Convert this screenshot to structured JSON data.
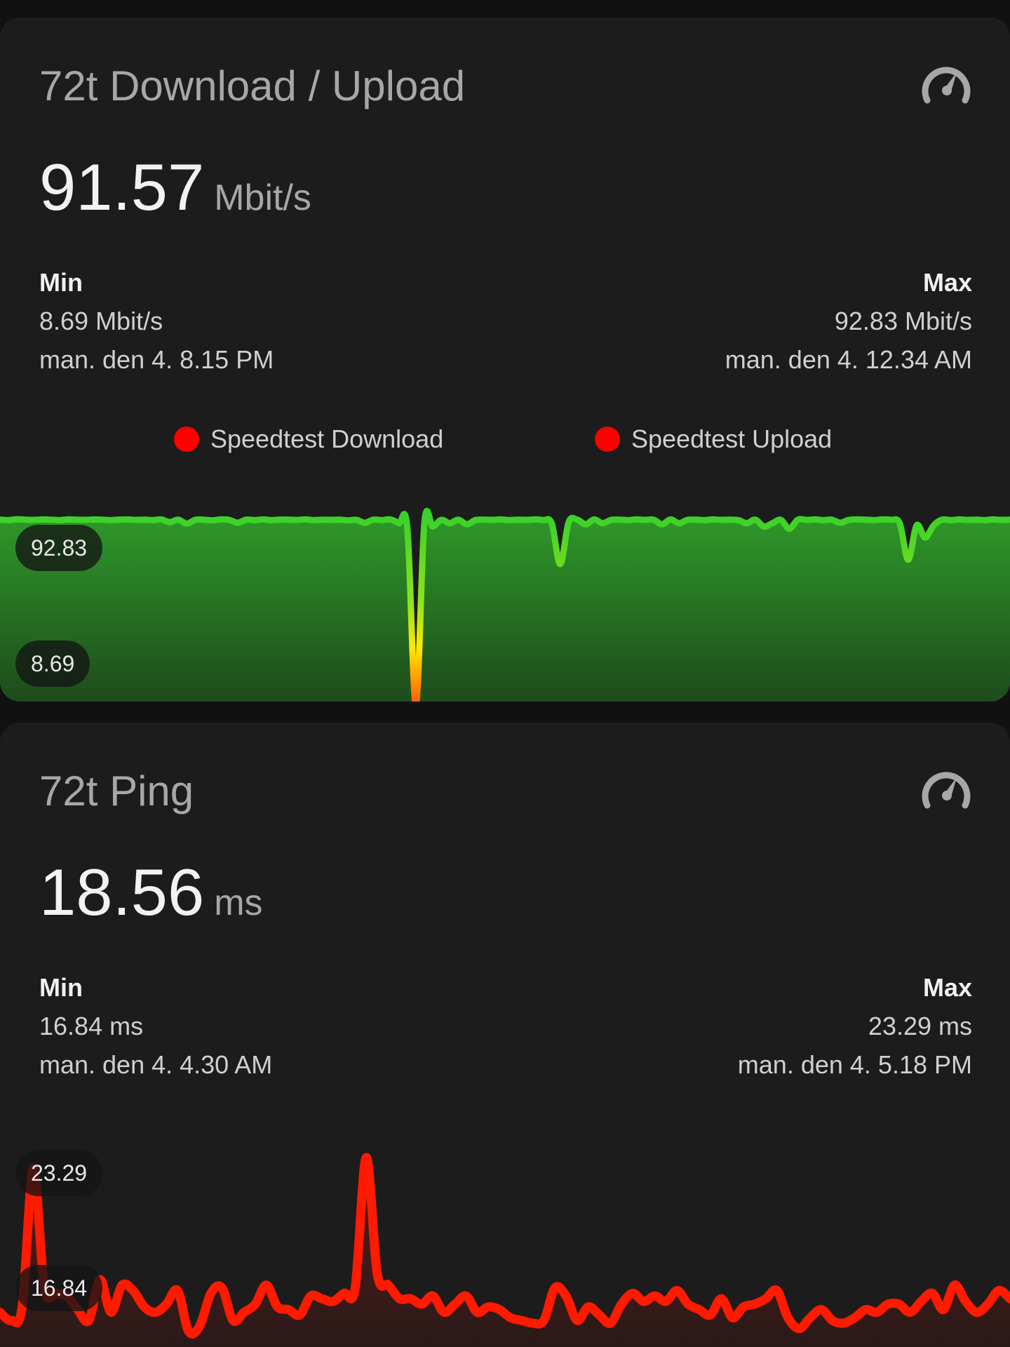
{
  "colors": {
    "card_bg": "#1c1c1c",
    "page_bg": "#111111",
    "download_line": "#39d12a",
    "ping_line": "#ff1a00",
    "legend_dot": "#ff0000"
  },
  "download_card": {
    "title": "72t Download / Upload",
    "icon": "speedometer-icon",
    "value": "91.57",
    "unit": "Mbit/s",
    "min": {
      "label": "Min",
      "value": "8.69 Mbit/s",
      "time": "man. den 4. 8.15 PM"
    },
    "max": {
      "label": "Max",
      "value": "92.83 Mbit/s",
      "time": "man. den 4. 12.34 AM"
    },
    "legend": [
      {
        "name": "Speedtest Download"
      },
      {
        "name": "Speedtest Upload"
      }
    ],
    "axis_max_label": "92.83",
    "axis_min_label": "8.69"
  },
  "ping_card": {
    "title": "72t Ping",
    "icon": "speedometer-icon",
    "value": "18.56",
    "unit": "ms",
    "min": {
      "label": "Min",
      "value": "16.84 ms",
      "time": "man. den 4. 4.30 AM"
    },
    "max": {
      "label": "Max",
      "value": "23.29 ms",
      "time": "man. den 4. 5.18 PM"
    },
    "axis_max_label": "23.29",
    "axis_min_label": "16.84"
  },
  "chart_data": [
    {
      "type": "area",
      "ylim": [
        8.69,
        92.83
      ],
      "series": [
        {
          "name": "Speedtest Download",
          "values": [
            92.6,
            92.4,
            92.8,
            92.6,
            92.5,
            92.7,
            92.6,
            92.4,
            92.7,
            92.6,
            92.5,
            92.7,
            92.6,
            92.4,
            92.6,
            92.7,
            92.5,
            92.6,
            92.4,
            92.7,
            91.5,
            92.6,
            90.8,
            92.5,
            92.6,
            92.3,
            92.7,
            92.5,
            91.2,
            92.6,
            92.4,
            92.7,
            92.4,
            92.6,
            92.6,
            92.5,
            92.7,
            92.4,
            92.6,
            92.5,
            92.6,
            92.3,
            92.5,
            91.2,
            92.6,
            92.4,
            92.7,
            91.0,
            88.5,
            8.69,
            91.0,
            89.5,
            92.5,
            91.0,
            92.6,
            90.5,
            92.4,
            92.6,
            92.5,
            92.7,
            92.4,
            92.6,
            92.5,
            92.7,
            92.4,
            91.0,
            72.5,
            91.5,
            92.6,
            90.5,
            92.7,
            91.0,
            92.5,
            92.6,
            92.4,
            92.7,
            92.5,
            92.6,
            90.5,
            92.7,
            91.0,
            92.5,
            92.6,
            92.4,
            92.7,
            92.5,
            92.6,
            92.4,
            91.0,
            92.6,
            89.5,
            91.0,
            92.5,
            88.5,
            92.6,
            92.5,
            92.7,
            92.4,
            92.6,
            91.2,
            92.5,
            92.7,
            92.6,
            92.4,
            92.7,
            92.5,
            91.0,
            74.5,
            90.0,
            84.5,
            90.0,
            92.6,
            92.4,
            92.7,
            92.5,
            92.6,
            92.4,
            92.7,
            92.5,
            92.6
          ]
        }
      ]
    },
    {
      "type": "area",
      "ylim": [
        16.84,
        23.29
      ],
      "series": [
        {
          "name": "Ping",
          "values": [
            17.6,
            17.3,
            17.8,
            22.9,
            18.5,
            18.3,
            18.2,
            17.7,
            17.3,
            18.8,
            17.6,
            18.6,
            18.4,
            17.8,
            17.6,
            17.9,
            18.4,
            16.9,
            17.1,
            18.3,
            18.5,
            17.3,
            17.6,
            17.9,
            18.6,
            17.8,
            17.7,
            17.5,
            18.2,
            18.1,
            18.0,
            18.3,
            18.5,
            23.29,
            19.0,
            18.6,
            18.1,
            18.1,
            17.9,
            18.2,
            17.6,
            17.9,
            18.2,
            17.6,
            17.8,
            17.7,
            17.4,
            17.3,
            17.2,
            17.3,
            18.5,
            18.2,
            17.3,
            17.8,
            17.5,
            17.2,
            17.9,
            18.3,
            18.0,
            18.2,
            18.0,
            18.4,
            17.9,
            17.7,
            17.5,
            18.1,
            17.4,
            17.8,
            17.9,
            18.1,
            18.4,
            17.4,
            17.0,
            17.4,
            17.7,
            17.3,
            17.2,
            17.4,
            17.7,
            17.6,
            17.9,
            17.9,
            17.6,
            18.0,
            18.3,
            17.7,
            18.6,
            18.0,
            17.6,
            17.9,
            18.4,
            18.1
          ]
        }
      ]
    }
  ]
}
